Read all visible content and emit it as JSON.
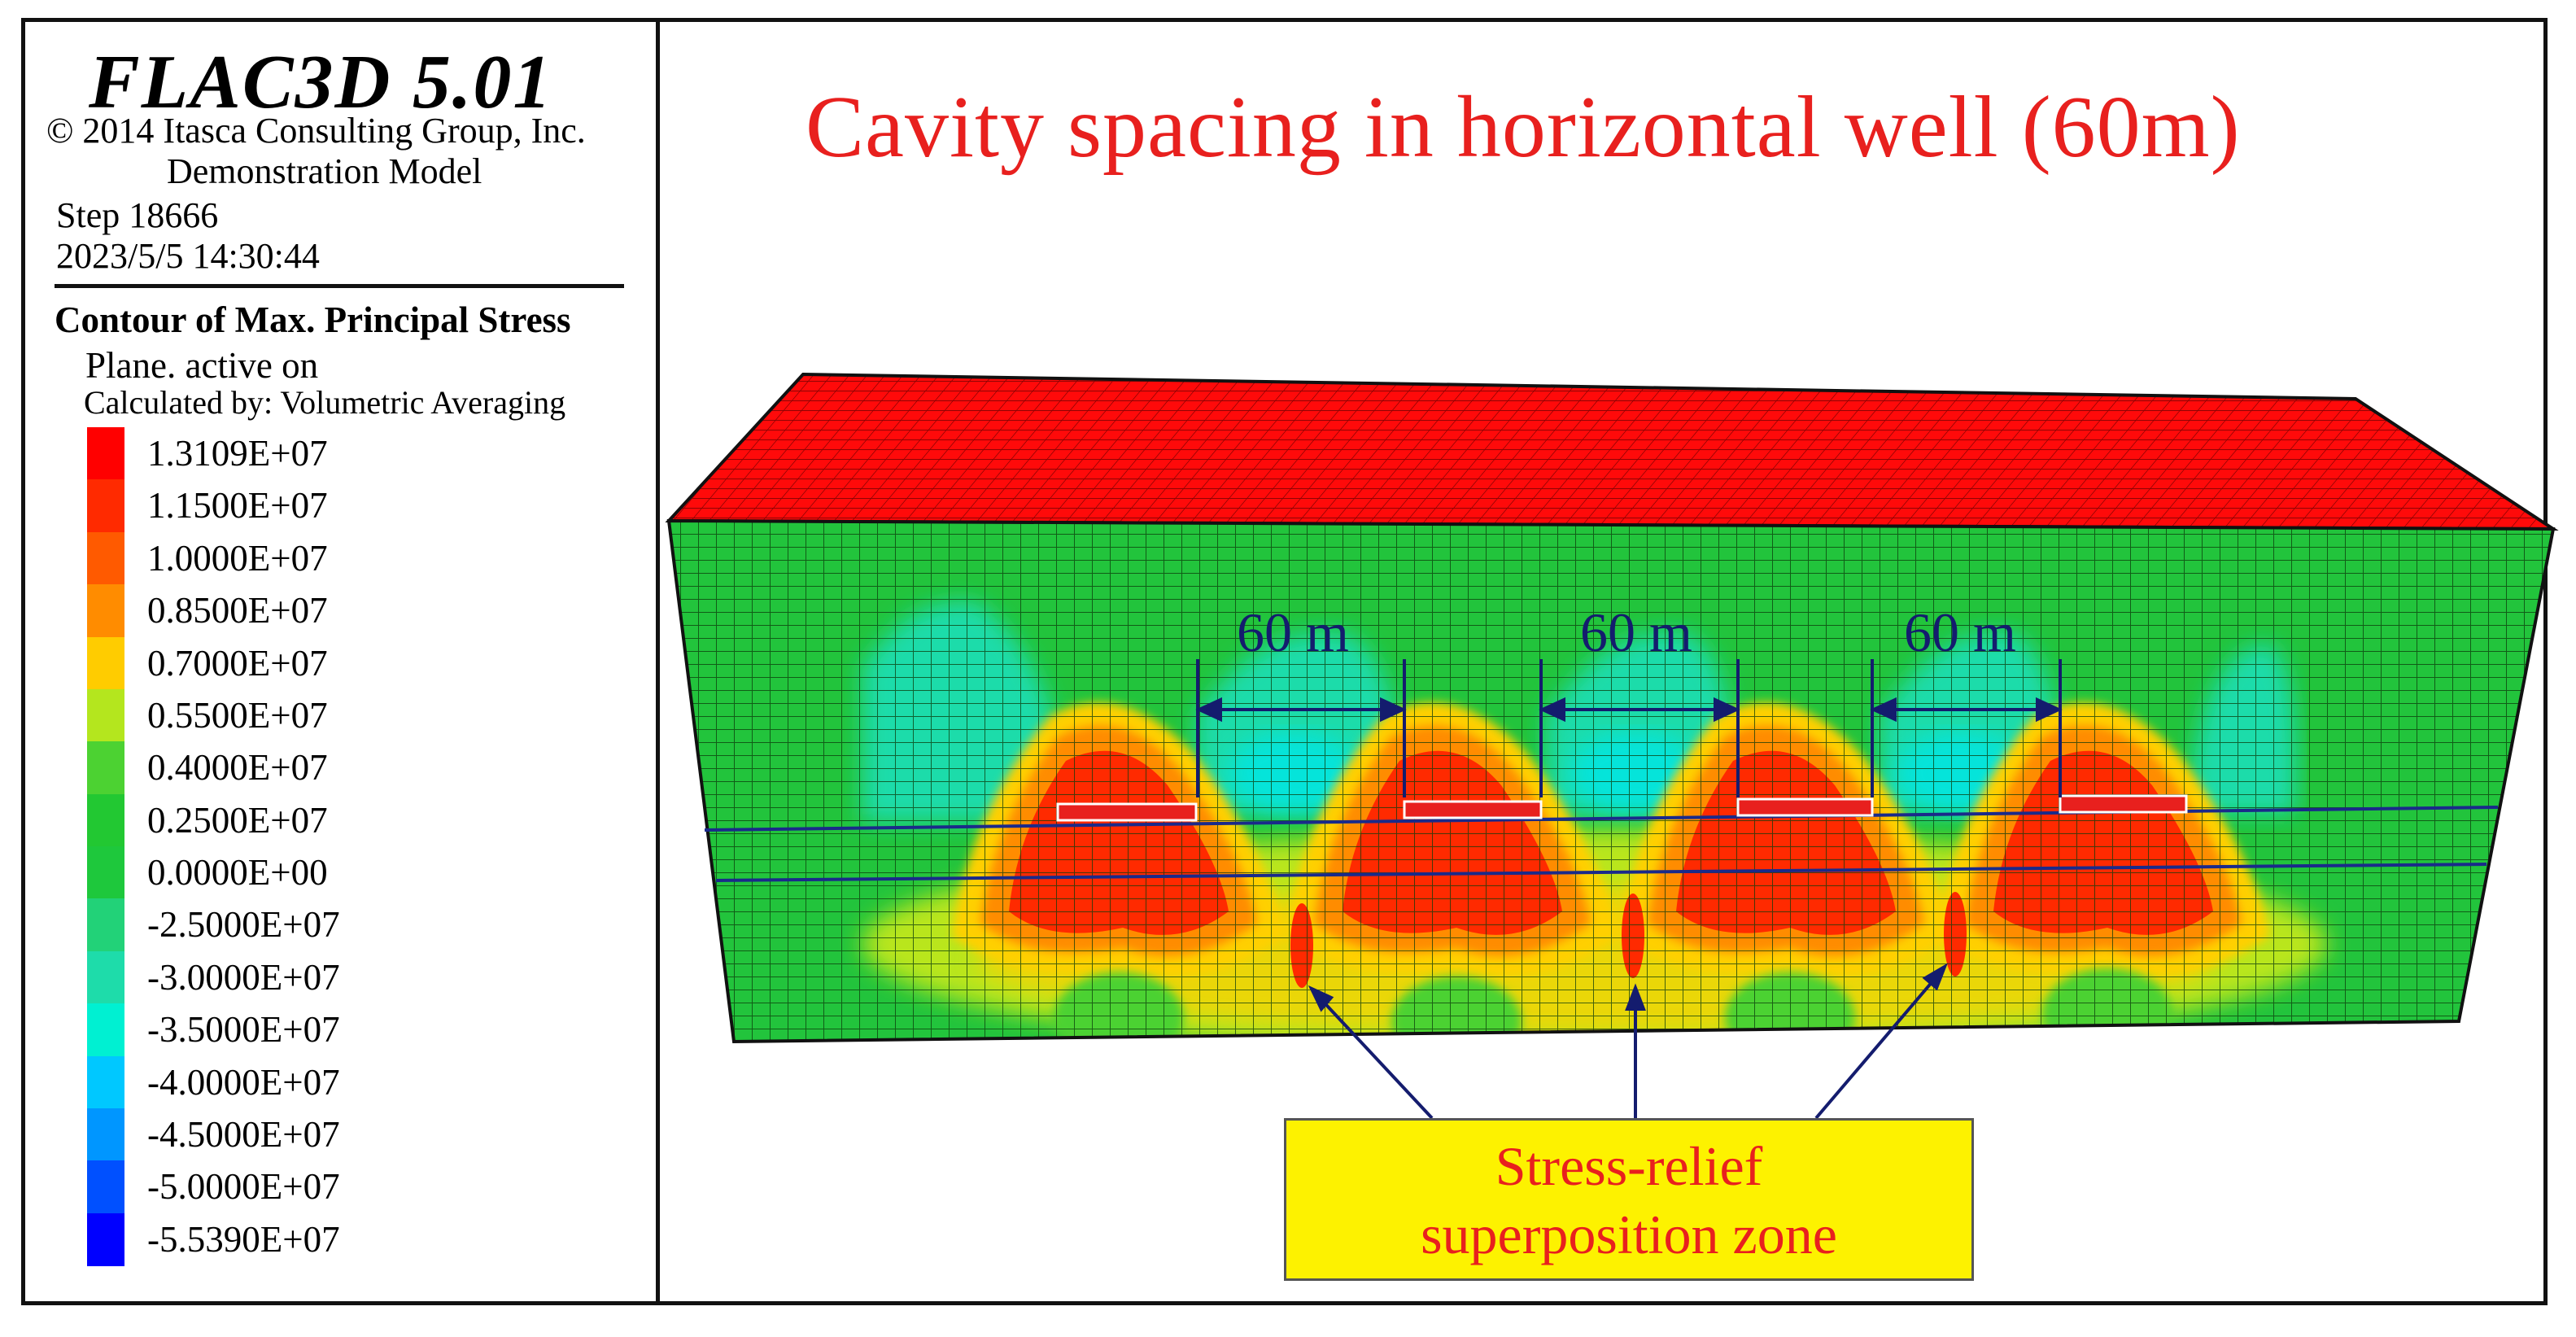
{
  "header": {
    "software": "FLAC3D  5.01",
    "copyright": "© 2014 Itasca Consulting Group, Inc.",
    "model_type": "Demonstration Model",
    "step": "Step  18666",
    "timestamp": "2023/5/5 14:30:44"
  },
  "legend": {
    "title": "Contour of Max. Principal Stress",
    "plane": "Plane. active on",
    "method": "Calculated by: Volumetric Averaging",
    "levels": [
      {
        "label": "1.3109E+07",
        "color": "#ff0000"
      },
      {
        "label": "1.1500E+07",
        "color": "#ff2a00"
      },
      {
        "label": "1.0000E+07",
        "color": "#ff5a00"
      },
      {
        "label": "0.8500E+07",
        "color": "#ff8c00"
      },
      {
        "label": "0.7000E+07",
        "color": "#ffcc00"
      },
      {
        "label": "0.5500E+07",
        "color": "#b4e61e"
      },
      {
        "label": "0.4000E+07",
        "color": "#4cd232"
      },
      {
        "label": "0.2500E+07",
        "color": "#22c832"
      },
      {
        "label": "0.0000E+00",
        "color": "#1ec83c"
      },
      {
        "label": "-2.5000E+07",
        "color": "#22d278"
      },
      {
        "label": "-3.0000E+07",
        "color": "#1edcaa"
      },
      {
        "label": "-3.5000E+07",
        "color": "#00f0d2"
      },
      {
        "label": "-4.0000E+07",
        "color": "#00c8ff"
      },
      {
        "label": "-4.5000E+07",
        "color": "#0096ff"
      },
      {
        "label": "-5.0000E+07",
        "color": "#0050ff"
      },
      {
        "label": "-5.5390E+07",
        "color": "#0000ff"
      }
    ]
  },
  "plot": {
    "title": "Cavity spacing in horizontal well (60m)",
    "spacings": [
      "60 m",
      "60 m",
      "60 m"
    ],
    "callout_line1": "Stress-relief",
    "callout_line2": "superposition zone"
  }
}
